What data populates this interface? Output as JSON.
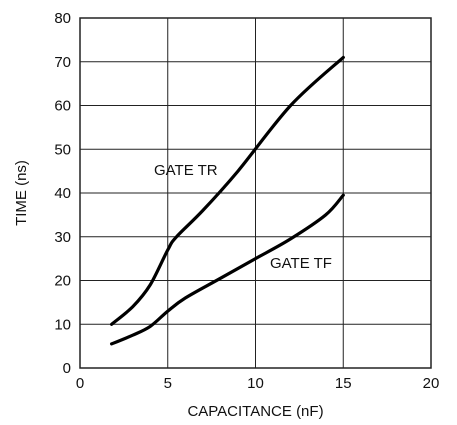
{
  "chart_data": {
    "type": "line",
    "xlabel": "CAPACITANCE (nF)",
    "ylabel": "TIME (ns)",
    "xlim": [
      0,
      20
    ],
    "ylim": [
      0,
      80
    ],
    "xticks": [
      0,
      5,
      10,
      15,
      20
    ],
    "yticks": [
      0,
      10,
      20,
      30,
      40,
      50,
      60,
      70,
      80
    ],
    "grid": true,
    "series": [
      {
        "name": "GATE TR",
        "x": [
          1.8,
          3,
          4,
          5,
          5.5,
          7,
          9,
          12,
          15
        ],
        "y": [
          10,
          14,
          19,
          27,
          30,
          36,
          45,
          60,
          71
        ]
      },
      {
        "name": "GATE TF",
        "x": [
          1.8,
          3,
          4,
          5,
          6,
          8,
          10,
          12,
          14,
          15
        ],
        "y": [
          5.5,
          7.5,
          9.5,
          13,
          16,
          20.5,
          25,
          29.5,
          35,
          39.5
        ]
      }
    ]
  }
}
